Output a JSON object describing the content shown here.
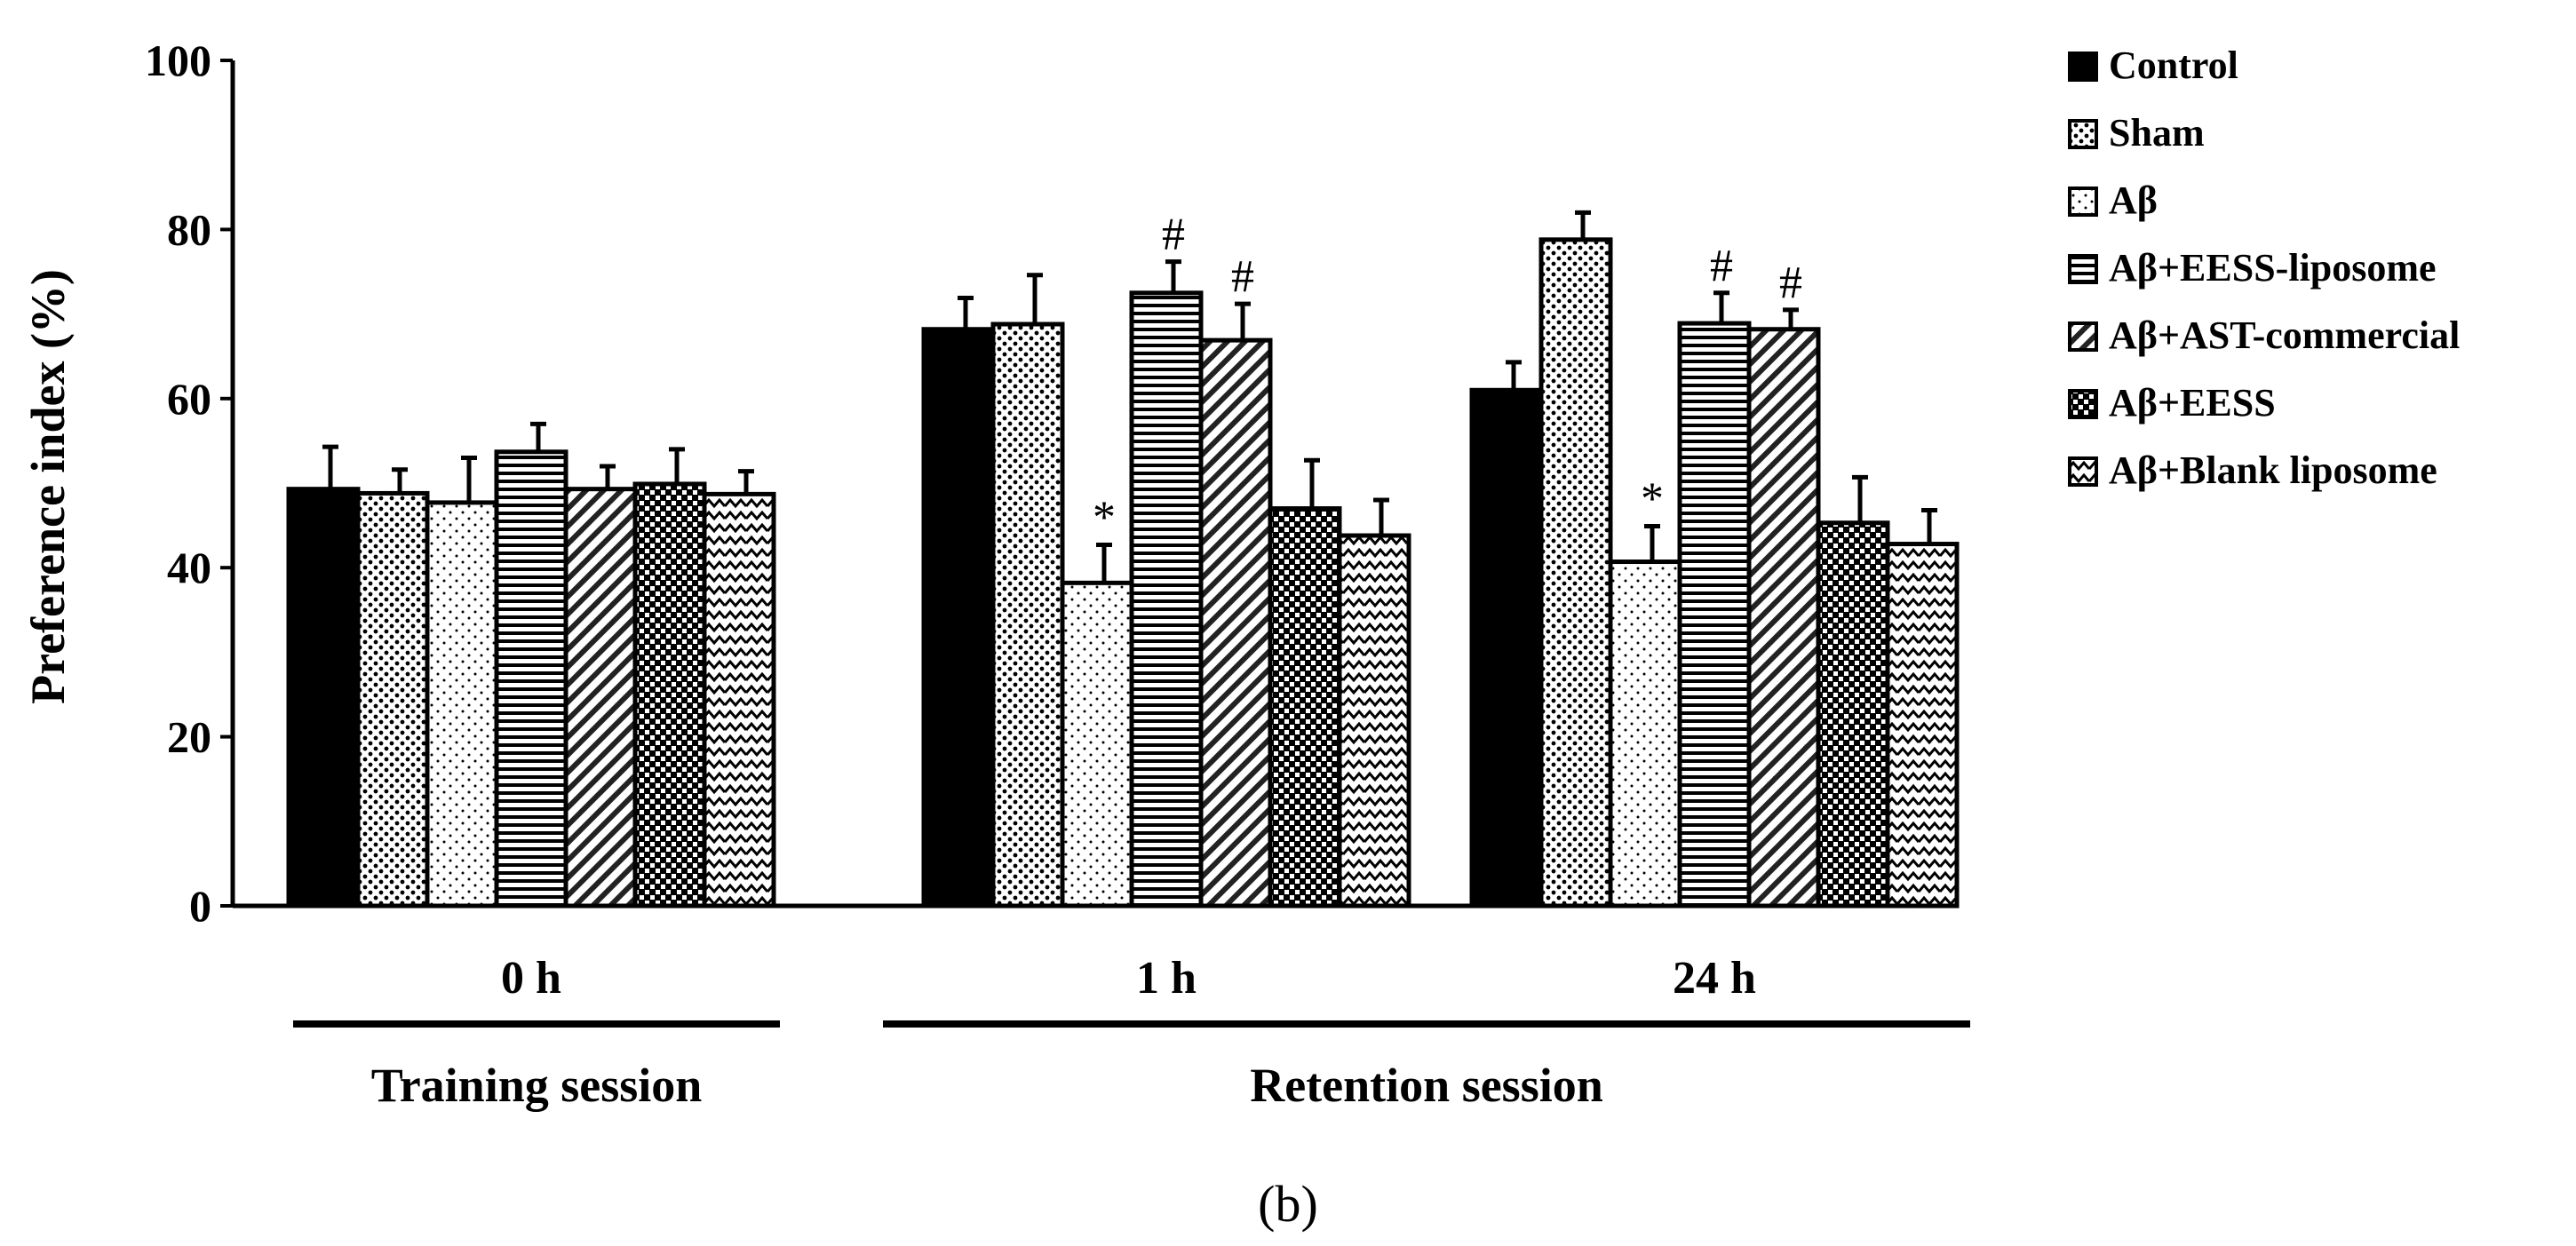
{
  "chart_data": {
    "type": "bar",
    "title": "",
    "panel_label": "(b)",
    "ylabel": "Preference index (%)",
    "xlabel": "",
    "ylim": [
      0,
      100
    ],
    "yticks": [
      "0",
      "20",
      "40",
      "60",
      "80",
      "100"
    ],
    "categories": [
      "0 h",
      "1 h",
      "24 h"
    ],
    "sessions": [
      {
        "label": "Training session",
        "categories": [
          "0 h"
        ]
      },
      {
        "label": "Retention session",
        "categories": [
          "1 h",
          "24 h"
        ]
      }
    ],
    "series": [
      {
        "name": "Control",
        "pattern": "solid",
        "values": [
          49.3,
          68.2,
          61.0
        ],
        "errors": [
          5.0,
          3.7,
          3.3
        ],
        "annotations": [
          "",
          "",
          ""
        ]
      },
      {
        "name": "Sham",
        "pattern": "dots",
        "values": [
          48.8,
          68.8,
          78.8
        ],
        "errors": [
          2.8,
          5.8,
          3.2
        ],
        "annotations": [
          "",
          "",
          ""
        ]
      },
      {
        "name": "Aβ",
        "pattern": "sparse-dots",
        "values": [
          47.7,
          38.2,
          40.7
        ],
        "errors": [
          5.3,
          4.5,
          4.2
        ],
        "annotations": [
          "",
          "*",
          "*"
        ]
      },
      {
        "name": "Aβ+EESS-liposome",
        "pattern": "horizontal-lines",
        "values": [
          53.7,
          72.5,
          68.9
        ],
        "errors": [
          3.3,
          3.7,
          3.6
        ],
        "annotations": [
          "",
          "#",
          "#"
        ]
      },
      {
        "name": "Aβ+AST-commercial",
        "pattern": "diagonal-hatch",
        "values": [
          49.3,
          66.9,
          68.2
        ],
        "errors": [
          2.7,
          4.3,
          2.3
        ],
        "annotations": [
          "",
          "#",
          "#"
        ]
      },
      {
        "name": "Aβ+EESS",
        "pattern": "checker",
        "values": [
          49.9,
          47.0,
          45.3
        ],
        "errors": [
          4.1,
          5.7,
          5.4
        ],
        "annotations": [
          "",
          "",
          ""
        ]
      },
      {
        "name": "Aβ+Blank liposome",
        "pattern": "zigzag",
        "values": [
          48.7,
          43.8,
          42.8
        ],
        "errors": [
          2.7,
          4.2,
          4.0
        ],
        "annotations": [
          "",
          "",
          ""
        ]
      }
    ]
  }
}
